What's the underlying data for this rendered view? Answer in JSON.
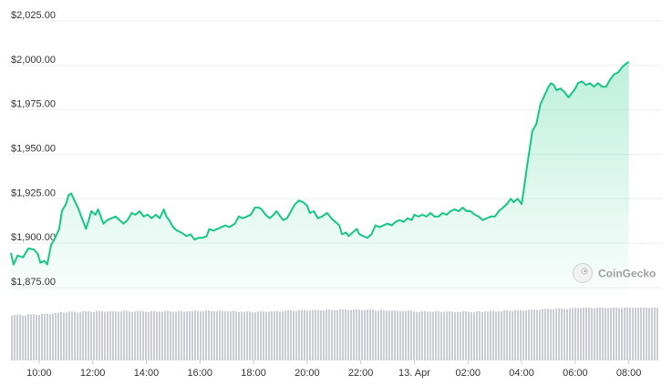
{
  "chart_data": {
    "type": "area",
    "y_ticks": [
      "$2,025.00",
      "$2,000.00",
      "$1,975.00",
      "$1,950.00",
      "$1,925.00",
      "$1,900.00",
      "$1,875.00"
    ],
    "y_tick_values": [
      2025,
      2000,
      1975,
      1950,
      1925,
      1900,
      1875
    ],
    "ylim": [
      1870,
      2030
    ],
    "x_ticks": [
      "10:00",
      "12:00",
      "14:00",
      "16:00",
      "18:00",
      "20:00",
      "22:00",
      "13. Apr",
      "02:00",
      "04:00",
      "06:00",
      "08:00"
    ],
    "x_tick_hours": [
      10,
      12,
      14,
      16,
      18,
      20,
      22,
      24,
      26,
      28,
      30,
      32
    ],
    "xlim_hours": [
      8.95,
      33.1
    ],
    "price_series": {
      "color": "#16c784",
      "points": [
        [
          8.95,
          1894.5
        ],
        [
          9.05,
          1888
        ],
        [
          9.2,
          1893
        ],
        [
          9.4,
          1892
        ],
        [
          9.6,
          1897
        ],
        [
          9.8,
          1896.5
        ],
        [
          9.95,
          1894
        ],
        [
          10.05,
          1889
        ],
        [
          10.2,
          1890
        ],
        [
          10.3,
          1888
        ],
        [
          10.45,
          1899
        ],
        [
          10.6,
          1903
        ],
        [
          10.75,
          1908
        ],
        [
          10.85,
          1918
        ],
        [
          11.0,
          1922
        ],
        [
          11.1,
          1927
        ],
        [
          11.2,
          1928
        ],
        [
          11.35,
          1923
        ],
        [
          11.45,
          1920
        ],
        [
          11.6,
          1914
        ],
        [
          11.75,
          1908
        ],
        [
          11.85,
          1913
        ],
        [
          11.95,
          1918
        ],
        [
          12.1,
          1916
        ],
        [
          12.2,
          1919
        ],
        [
          12.3,
          1915
        ],
        [
          12.4,
          1911
        ],
        [
          12.55,
          1913
        ],
        [
          12.7,
          1914
        ],
        [
          12.85,
          1915
        ],
        [
          13.0,
          1913
        ],
        [
          13.15,
          1911
        ],
        [
          13.3,
          1913
        ],
        [
          13.45,
          1917
        ],
        [
          13.6,
          1916
        ],
        [
          13.75,
          1918
        ],
        [
          13.9,
          1915
        ],
        [
          14.05,
          1916
        ],
        [
          14.2,
          1914
        ],
        [
          14.35,
          1916
        ],
        [
          14.5,
          1914
        ],
        [
          14.65,
          1919
        ],
        [
          14.75,
          1915
        ],
        [
          14.85,
          1913
        ],
        [
          15.0,
          1909
        ],
        [
          15.15,
          1907
        ],
        [
          15.3,
          1906
        ],
        [
          15.5,
          1904
        ],
        [
          15.65,
          1905
        ],
        [
          15.8,
          1902
        ],
        [
          15.95,
          1903
        ],
        [
          16.1,
          1903
        ],
        [
          16.25,
          1904
        ],
        [
          16.35,
          1908
        ],
        [
          16.5,
          1907
        ],
        [
          16.65,
          1908
        ],
        [
          16.8,
          1909
        ],
        [
          16.95,
          1910
        ],
        [
          17.1,
          1909
        ],
        [
          17.3,
          1911
        ],
        [
          17.45,
          1915
        ],
        [
          17.6,
          1914
        ],
        [
          17.75,
          1915
        ],
        [
          17.9,
          1916
        ],
        [
          18.05,
          1920
        ],
        [
          18.2,
          1920
        ],
        [
          18.3,
          1919
        ],
        [
          18.45,
          1916
        ],
        [
          18.6,
          1914
        ],
        [
          18.75,
          1916
        ],
        [
          18.85,
          1918
        ],
        [
          18.95,
          1916
        ],
        [
          19.1,
          1913
        ],
        [
          19.25,
          1914
        ],
        [
          19.4,
          1918
        ],
        [
          19.55,
          1922
        ],
        [
          19.7,
          1924
        ],
        [
          19.85,
          1923
        ],
        [
          20.0,
          1921
        ],
        [
          20.1,
          1917
        ],
        [
          20.25,
          1918
        ],
        [
          20.4,
          1914
        ],
        [
          20.55,
          1915
        ],
        [
          20.75,
          1917
        ],
        [
          20.9,
          1914
        ],
        [
          21.05,
          1912
        ],
        [
          21.2,
          1910
        ],
        [
          21.3,
          1905
        ],
        [
          21.45,
          1906
        ],
        [
          21.55,
          1904
        ],
        [
          21.7,
          1906
        ],
        [
          21.85,
          1908
        ],
        [
          21.95,
          1905
        ],
        [
          22.1,
          1904
        ],
        [
          22.25,
          1903
        ],
        [
          22.4,
          1905
        ],
        [
          22.55,
          1910
        ],
        [
          22.7,
          1909
        ],
        [
          22.85,
          1910
        ],
        [
          23.0,
          1911
        ],
        [
          23.15,
          1910
        ],
        [
          23.3,
          1912
        ],
        [
          23.45,
          1913
        ],
        [
          23.6,
          1912
        ],
        [
          23.75,
          1914
        ],
        [
          23.9,
          1913
        ],
        [
          24.0,
          1916
        ],
        [
          24.15,
          1915
        ],
        [
          24.3,
          1916
        ],
        [
          24.45,
          1915
        ],
        [
          24.6,
          1917
        ],
        [
          24.75,
          1915
        ],
        [
          24.9,
          1915
        ],
        [
          25.05,
          1917
        ],
        [
          25.2,
          1916
        ],
        [
          25.35,
          1918
        ],
        [
          25.5,
          1919
        ],
        [
          25.65,
          1918
        ],
        [
          25.8,
          1920
        ],
        [
          25.95,
          1918
        ],
        [
          26.1,
          1918
        ],
        [
          26.25,
          1916
        ],
        [
          26.4,
          1915
        ],
        [
          26.55,
          1913
        ],
        [
          26.7,
          1914
        ],
        [
          26.85,
          1915
        ],
        [
          27.0,
          1915
        ],
        [
          27.15,
          1918
        ],
        [
          27.3,
          1920
        ],
        [
          27.45,
          1922
        ],
        [
          27.6,
          1925
        ],
        [
          27.7,
          1923
        ],
        [
          27.85,
          1925
        ],
        [
          28.0,
          1922
        ],
        [
          28.1,
          1932
        ],
        [
          28.2,
          1943
        ],
        [
          28.3,
          1953
        ],
        [
          28.4,
          1963
        ],
        [
          28.55,
          1967
        ],
        [
          28.7,
          1978
        ],
        [
          28.85,
          1983
        ],
        [
          29.0,
          1988
        ],
        [
          29.1,
          1990
        ],
        [
          29.2,
          1989
        ],
        [
          29.3,
          1986
        ],
        [
          29.45,
          1987
        ],
        [
          29.6,
          1985
        ],
        [
          29.75,
          1982
        ],
        [
          29.85,
          1984
        ],
        [
          30.0,
          1987
        ],
        [
          30.1,
          1990
        ],
        [
          30.25,
          1991
        ],
        [
          30.4,
          1989
        ],
        [
          30.55,
          1990
        ],
        [
          30.7,
          1988
        ],
        [
          30.85,
          1990
        ],
        [
          31.0,
          1988
        ],
        [
          31.15,
          1988
        ],
        [
          31.3,
          1992
        ],
        [
          31.45,
          1995
        ],
        [
          31.6,
          1996
        ],
        [
          31.75,
          1999
        ],
        [
          31.9,
          2001
        ],
        [
          32.0,
          2002
        ]
      ]
    },
    "volume": {
      "color": "#c9ccd4",
      "relative_levels": [
        [
          8.95,
          0.86
        ],
        [
          10.0,
          0.87
        ],
        [
          11.0,
          0.92
        ],
        [
          13.0,
          0.93
        ],
        [
          15.0,
          0.93
        ],
        [
          16.5,
          0.94
        ],
        [
          18.0,
          0.92
        ],
        [
          20.0,
          0.95
        ],
        [
          22.0,
          0.96
        ],
        [
          24.0,
          0.93
        ],
        [
          26.0,
          0.92
        ],
        [
          28.0,
          0.95
        ],
        [
          29.5,
          0.98
        ],
        [
          30.5,
          1.0
        ],
        [
          33.1,
          1.0
        ]
      ]
    },
    "watermark": "CoinGecko",
    "grid": true
  }
}
